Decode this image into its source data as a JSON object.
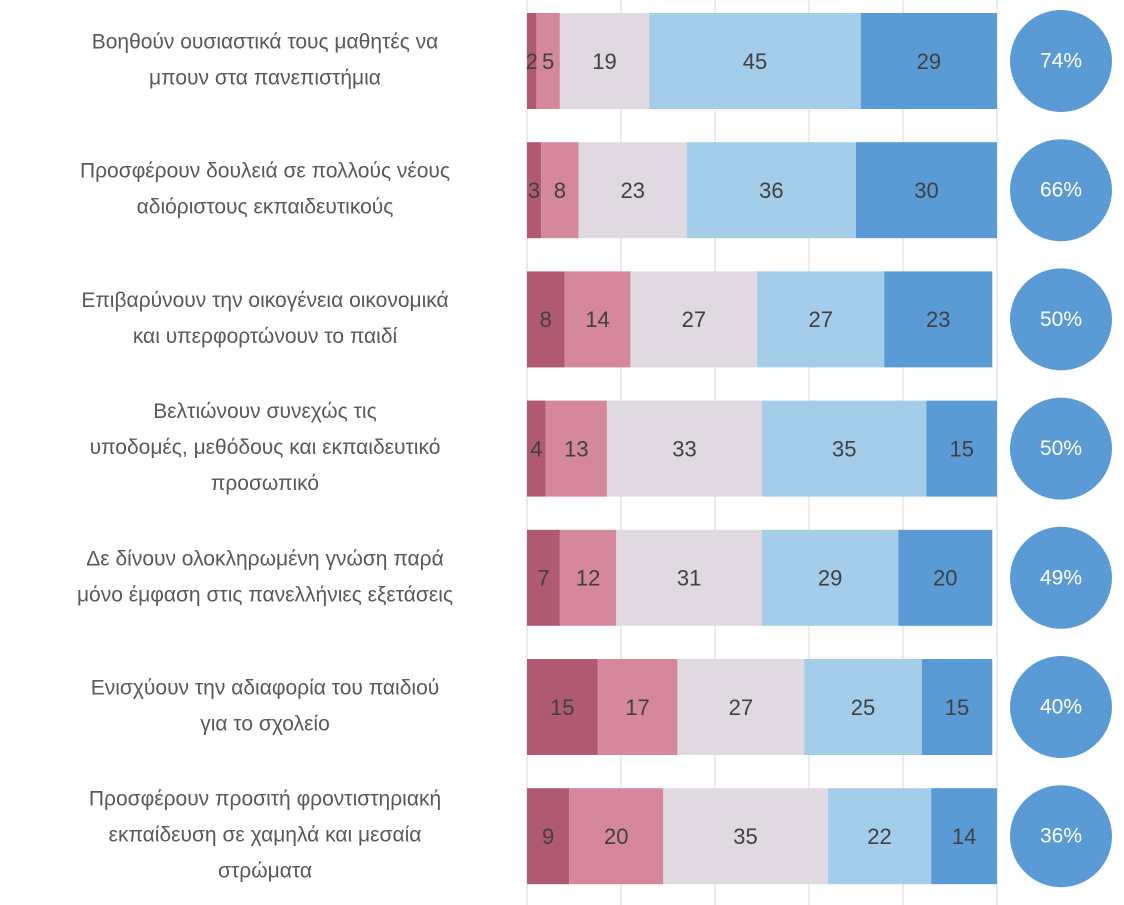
{
  "chart_data": {
    "type": "stacked-bar-horizontal",
    "categories": [
      [
        "Βοηθούν ουσιαστικά τους μαθητές να",
        "μπουν στα πανεπιστήμια"
      ],
      [
        "Προσφέρουν δουλειά σε πολλούς νέους",
        "αδιόριστους εκπαιδευτικούς"
      ],
      [
        "Επιβαρύνουν την οικογένεια οικονομικά",
        "και υπερφορτώνουν το παιδί"
      ],
      [
        "Βελτιώνουν συνεχώς τις",
        "υποδομές, μεθόδους και εκπαιδευτικό",
        "προσωπικό"
      ],
      [
        "Δε δίνουν ολοκληρωμένη γνώση παρά",
        "μόνο έμφαση στις πανελλήνιες εξετάσεις"
      ],
      [
        "Ενισχύουν την αδιαφορία του παιδιού",
        "για το σχολείο"
      ],
      [
        "Προσφέρουν προσιτή φροντιστηριακή",
        "εκπαίδευση σε χαμηλά και μεσαία",
        "στρώματα"
      ]
    ],
    "series": [
      {
        "color": "#b05a72",
        "values": [
          2,
          3,
          8,
          4,
          7,
          15,
          9
        ]
      },
      {
        "color": "#d4889a",
        "values": [
          5,
          8,
          14,
          13,
          12,
          17,
          20
        ]
      },
      {
        "color": "#e0d9e1",
        "values": [
          19,
          23,
          27,
          33,
          31,
          27,
          35
        ]
      },
      {
        "color": "#a4cde9",
        "values": [
          45,
          36,
          27,
          35,
          29,
          25,
          22
        ]
      },
      {
        "color": "#5b9bd5",
        "values": [
          29,
          30,
          23,
          15,
          20,
          15,
          14
        ]
      }
    ],
    "totals": {
      "color": "#5b9bd5",
      "values": [
        74,
        66,
        50,
        50,
        49,
        40,
        36
      ],
      "value_labels": [
        "74%",
        "66%",
        "50%",
        "50%",
        "49%",
        "40%",
        "36%"
      ]
    },
    "xlim": [
      0,
      100
    ],
    "xticks": [
      0,
      20,
      40,
      60,
      80,
      100
    ],
    "grid": true
  }
}
